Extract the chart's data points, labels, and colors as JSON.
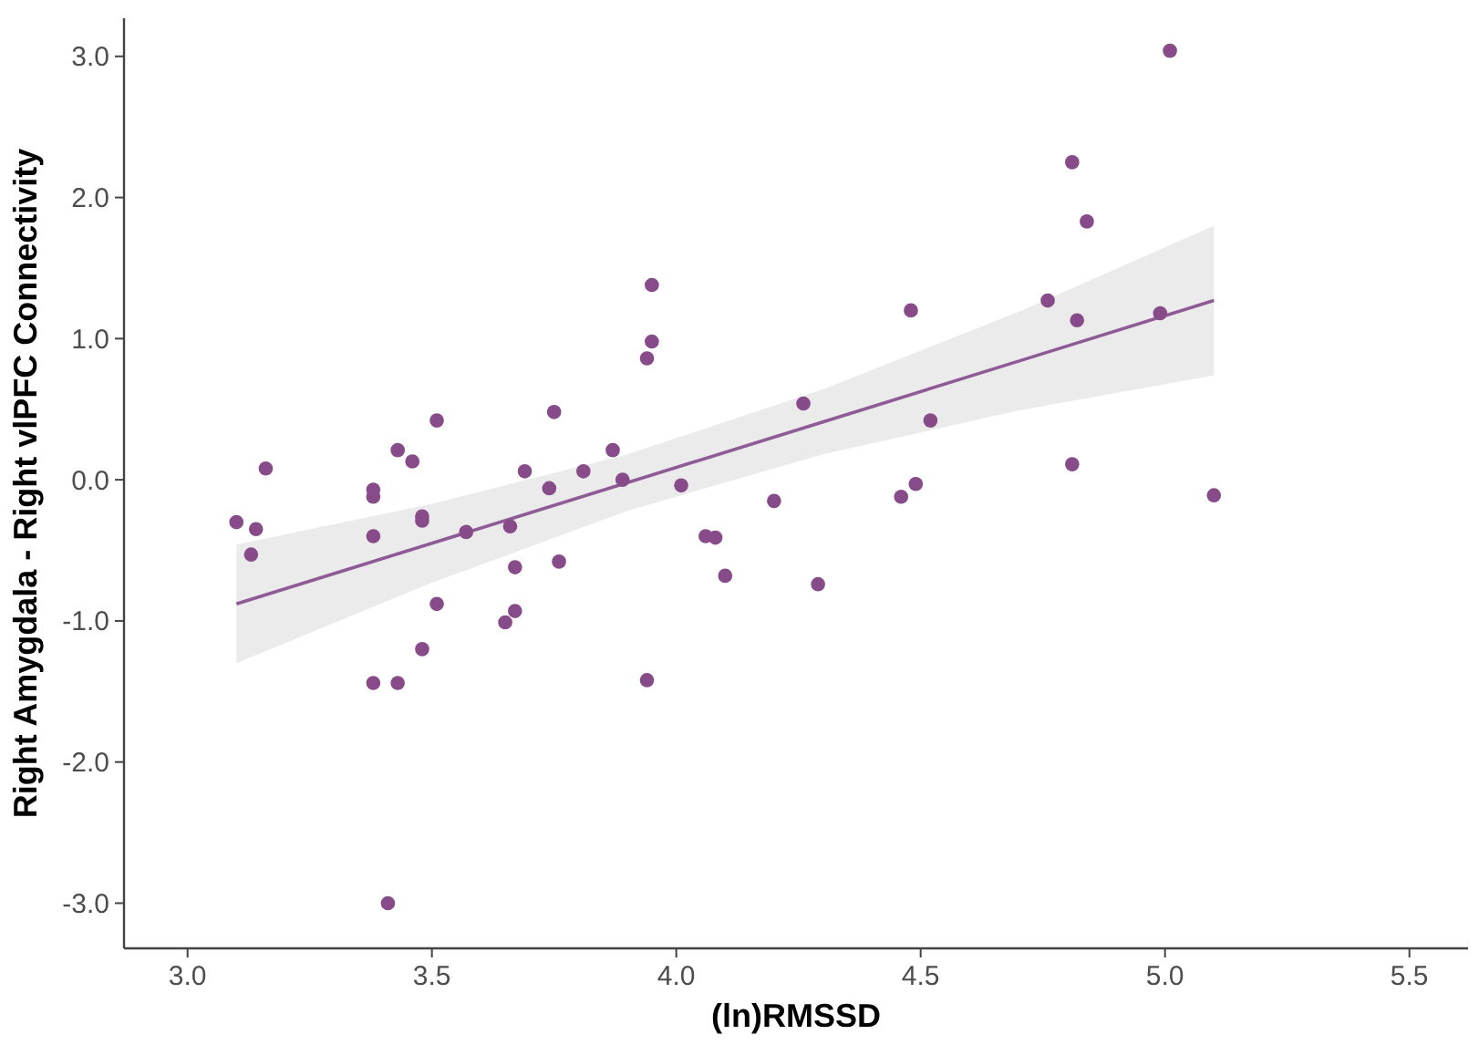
{
  "chart_data": {
    "type": "scatter",
    "xlabel": "(ln)RMSSD",
    "ylabel": "Right Amygdala - Right vlPFC Connectivity",
    "xlim": [
      2.87,
      5.62
    ],
    "ylim": [
      -3.32,
      3.27
    ],
    "xticks": [
      {
        "value": 3,
        "label": "3.0"
      },
      {
        "value": 3.5,
        "label": "3.5"
      },
      {
        "value": 4,
        "label": "4.0"
      },
      {
        "value": 4.5,
        "label": "4.5"
      },
      {
        "value": 5,
        "label": "5.0"
      },
      {
        "value": 5.5,
        "label": "5.5"
      }
    ],
    "yticks": [
      {
        "value": -3,
        "label": "-3.0"
      },
      {
        "value": -2,
        "label": "-2.0"
      },
      {
        "value": -1,
        "label": "-1.0"
      },
      {
        "value": 0,
        "label": "0.0"
      },
      {
        "value": 1,
        "label": "1.0"
      },
      {
        "value": 2,
        "label": "2.0"
      },
      {
        "value": 3,
        "label": "3.0"
      }
    ],
    "grid": false,
    "series": [
      {
        "type": "line",
        "color": "#8e5b96",
        "x": [
          3.1,
          3.5,
          3.9,
          4.3,
          4.7,
          5.1
        ],
        "values": [
          -0.88,
          -0.45,
          -0.02,
          0.41,
          0.84,
          1.27
        ],
        "lower": [
          -1.3,
          -0.73,
          -0.22,
          0.18,
          0.49,
          0.74
        ],
        "upper": [
          -0.46,
          -0.17,
          0.18,
          0.64,
          1.19,
          1.8
        ]
      },
      {
        "marker": "circle",
        "color": "#874b8a",
        "x": [
          3.1,
          3.14,
          3.13,
          3.16,
          3.38,
          3.38,
          3.38,
          3.43,
          3.46,
          3.51,
          3.48,
          3.48,
          3.57,
          3.66,
          3.75,
          3.69,
          3.74,
          3.81,
          3.67,
          3.76,
          3.51,
          3.67,
          3.65,
          3.48,
          3.38,
          3.43,
          3.95,
          3.95,
          3.94,
          4.48,
          4.26,
          4.52,
          3.87,
          3.89,
          4.01,
          4.2,
          4.46,
          4.49,
          4.06,
          4.08,
          4.1,
          4.29,
          3.94,
          5.01,
          4.81,
          4.84,
          4.76,
          4.82,
          4.99,
          4.81,
          5.1,
          3.41
        ],
        "values": [
          -0.3,
          -0.35,
          -0.53,
          0.08,
          -0.07,
          -0.12,
          -0.4,
          0.21,
          0.13,
          0.42,
          -0.26,
          -0.29,
          -0.37,
          -0.33,
          0.48,
          0.06,
          -0.06,
          0.06,
          -0.62,
          -0.58,
          -0.88,
          -0.93,
          -1.01,
          -1.2,
          -1.44,
          -1.44,
          1.38,
          0.98,
          0.86,
          1.2,
          0.54,
          0.42,
          0.21,
          0.0,
          -0.04,
          -0.15,
          -0.12,
          -0.03,
          -0.4,
          -0.41,
          -0.68,
          -0.74,
          -1.42,
          3.04,
          2.25,
          1.83,
          1.27,
          1.13,
          1.18,
          0.11,
          -0.11,
          -3.0
        ]
      }
    ]
  }
}
